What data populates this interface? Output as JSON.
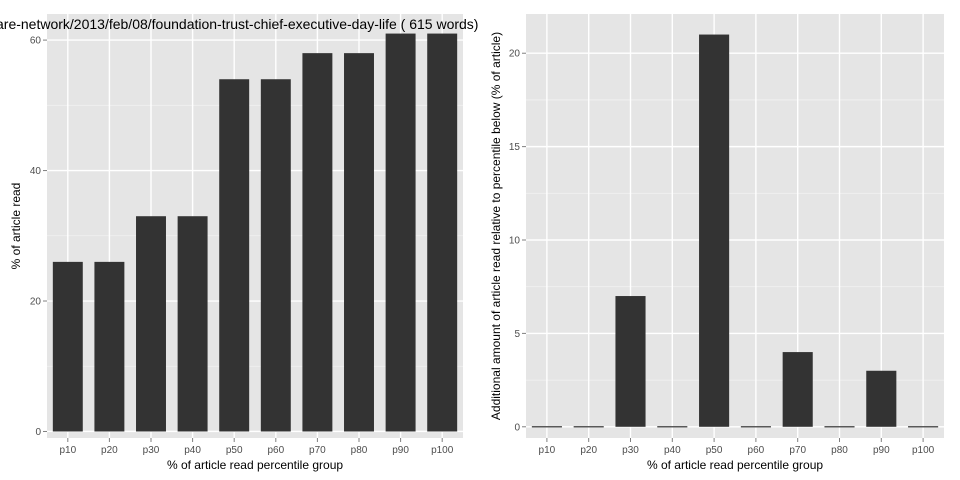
{
  "chart_data": [
    {
      "type": "bar",
      "title": "are-network/2013/feb/08/foundation-trust-chief-executive-day-life ( 615 words)",
      "xlabel": "% of article read percentile group",
      "ylabel": "% of article read",
      "categories": [
        "p10",
        "p20",
        "p30",
        "p40",
        "p50",
        "p60",
        "p70",
        "p80",
        "p90",
        "p100"
      ],
      "values": [
        26,
        26,
        33,
        33,
        54,
        54,
        58,
        58,
        61,
        61
      ],
      "ylim": [
        -1,
        64
      ],
      "yticks": [
        0,
        20,
        40,
        60
      ],
      "grid": true,
      "bar_color": "#333333",
      "panel_color": "#e5e5e5"
    },
    {
      "type": "bar",
      "title": "",
      "xlabel": "% of article read percentile group",
      "ylabel": "Additional amount of article read relative to percentile below (% of article)",
      "categories": [
        "p10",
        "p20",
        "p30",
        "p40",
        "p50",
        "p60",
        "p70",
        "p80",
        "p90",
        "p100"
      ],
      "values": [
        0,
        0,
        7,
        0,
        21,
        0,
        4,
        0,
        3,
        0
      ],
      "ylim": [
        -0.6,
        22.1
      ],
      "yticks": [
        0,
        5,
        10,
        15,
        20
      ],
      "grid": true,
      "bar_color": "#333333",
      "panel_color": "#e5e5e5"
    }
  ]
}
